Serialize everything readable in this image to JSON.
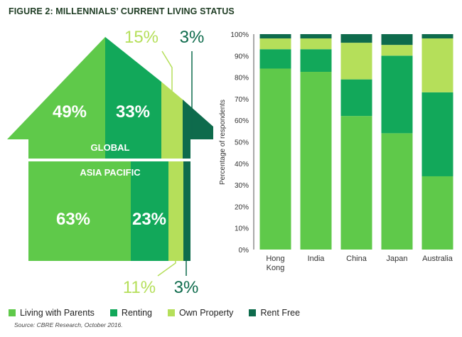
{
  "figure_title": "FIGURE 2: MILLENNIALS’ CURRENT LIVING STATUS",
  "colors": {
    "living_with_parents": "#5fc94a",
    "renting": "#12a85a",
    "own_property": "#b5df5a",
    "rent_free": "#0e6b4c"
  },
  "house": {
    "global": {
      "label": "GLOBAL",
      "living_with_parents": "49%",
      "renting": "33%",
      "own_property": "15%",
      "rent_free": "3%"
    },
    "asia_pacific": {
      "label": "ASIA PACIFIC",
      "living_with_parents": "63%",
      "renting": "23%",
      "own_property": "11%",
      "rent_free": "3%"
    }
  },
  "chart_data": {
    "type": "bar",
    "stacked": true,
    "categories": [
      "Hong Kong",
      "India",
      "China",
      "Japan",
      "Australia"
    ],
    "ylabel": "Percentage of respondents",
    "xlabel": "",
    "ylim": [
      0,
      100
    ],
    "yticks": [
      "0%",
      "10%",
      "20%",
      "30%",
      "40%",
      "50%",
      "60%",
      "70%",
      "80%",
      "90%",
      "100%"
    ],
    "series": [
      {
        "name": "Living with Parents",
        "values": [
          84,
          82.5,
          62,
          54,
          34
        ]
      },
      {
        "name": "Renting",
        "values": [
          9,
          10.5,
          17,
          36,
          39
        ]
      },
      {
        "name": "Own Property",
        "values": [
          5,
          5,
          17,
          5,
          25
        ]
      },
      {
        "name": "Rent Free",
        "values": [
          2,
          2,
          4,
          5,
          2
        ]
      }
    ]
  },
  "legend": [
    {
      "label": "Living with Parents",
      "color": "#5fc94a"
    },
    {
      "label": "Renting",
      "color": "#12a85a"
    },
    {
      "label": "Own Property",
      "color": "#b5df5a"
    },
    {
      "label": "Rent Free",
      "color": "#0e6b4c"
    }
  ],
  "source": "Source: CBRE Research, October 2016."
}
